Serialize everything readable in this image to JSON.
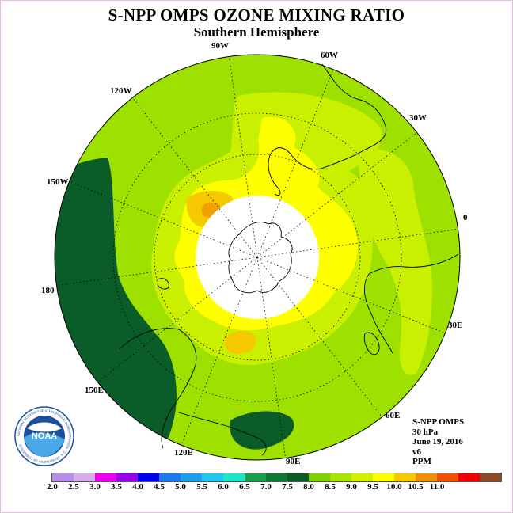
{
  "title": "S-NPP OMPS OZONE MIXING RATIO",
  "subtitle": "Southern Hemisphere",
  "longitude_labels": {
    "lon_90w": "90W",
    "lon_60w": "60W",
    "lon_30w": "30W",
    "lon_0": "0",
    "lon_30e": "30E",
    "lon_60e": "60E",
    "lon_90e": "90E",
    "lon_120e": "120E",
    "lon_150e": "150E",
    "lon_180": "180",
    "lon_150w": "150W",
    "lon_120w": "120W"
  },
  "info": {
    "instrument": "S-NPP OMPS",
    "level": "30 hPa",
    "date": "June 19, 2016",
    "version": "v6",
    "units": "PPM"
  },
  "logo": {
    "text": "NOAA",
    "ring_text": "NATIONAL OCEANIC AND ATMOSPHERIC ADMINISTRATION · U.S. DEPARTMENT OF COMMERCE"
  },
  "colorbar": {
    "colors": [
      "#b58ee8",
      "#d9aee8",
      "#ee00ee",
      "#9900ee",
      "#0000ee",
      "#1c78ee",
      "#1ca0ee",
      "#1cc8ee",
      "#1ce8c8",
      "#1aa048",
      "#0d7a34",
      "#0a5c28",
      "#7fd000",
      "#a8e400",
      "#d0f000",
      "#ffff00",
      "#f5c800",
      "#f09000",
      "#f05000",
      "#f00000",
      "#8a4a28"
    ],
    "tick_labels": [
      "2.0",
      "2.5",
      "3.0",
      "3.5",
      "4.0",
      "4.5",
      "5.0",
      "5.5",
      "6.0",
      "6.5",
      "7.0",
      "7.5",
      "8.0",
      "8.5",
      "9.0",
      "9.5",
      "10.0",
      "10.5",
      "11.0"
    ]
  },
  "field_colors": {
    "base": "#9ee000",
    "high_7_5": "#c8f000",
    "high_8": "#ffff00",
    "high_8_5": "#f6c800",
    "high_9": "#f0a000",
    "low": "#0a5c28"
  }
}
